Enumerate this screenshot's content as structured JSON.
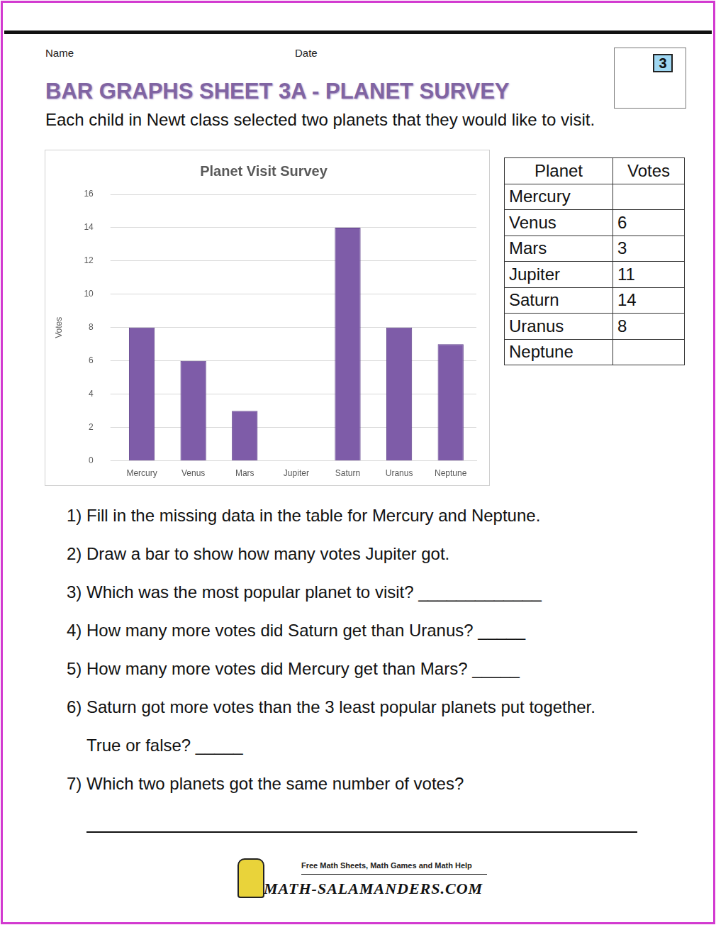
{
  "header": {
    "name_label": "Name",
    "date_label": "Date",
    "title": "BAR GRAPHS SHEET 3A - PLANET SURVEY",
    "badge": "3",
    "intro": "Each child in Newt class selected two planets that they would like to visit."
  },
  "chart_data": {
    "type": "bar",
    "title": "Planet Visit Survey",
    "y_label": "Votes",
    "categories": [
      "Mercury",
      "Venus",
      "Mars",
      "Jupiter",
      "Saturn",
      "Uranus",
      "Neptune"
    ],
    "values": [
      8,
      6,
      3,
      null,
      14,
      8,
      7
    ],
    "color": "#7e5ca8",
    "ylim": [
      0,
      16
    ],
    "yticks": [
      0,
      2,
      4,
      6,
      8,
      10,
      12,
      14,
      16
    ],
    "grid": true
  },
  "table": {
    "columns": [
      "Planet",
      "Votes"
    ],
    "rows": [
      [
        "Mercury",
        null
      ],
      [
        "Venus",
        6
      ],
      [
        "Mars",
        3
      ],
      [
        "Jupiter",
        11
      ],
      [
        "Saturn",
        14
      ],
      [
        "Uranus",
        8
      ],
      [
        "Neptune",
        null
      ]
    ]
  },
  "questions": [
    [
      "1) Fill in the missing data in the table for Mercury and Neptune."
    ],
    [
      "2) Draw a bar to show how many votes Jupiter got."
    ],
    [
      "3) Which was the most popular planet to visit? _____________"
    ],
    [
      "4) How many more votes did Saturn get than Uranus? _____"
    ],
    [
      "5) How many more votes did Mercury get than Mars? _____"
    ],
    [
      "6) Saturn got more votes than the 3 least popular planets put together.",
      "True or false? _____"
    ],
    [
      "7) Which two planets got the same number of votes?"
    ]
  ],
  "footer": {
    "tagline": "Free Math Sheets, Math Games and Math Help",
    "site": "MATH-SALAMANDERS.COM"
  }
}
